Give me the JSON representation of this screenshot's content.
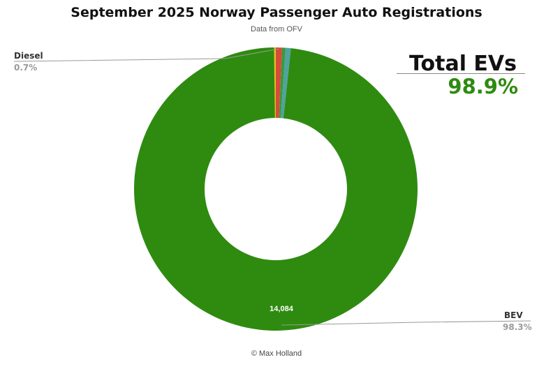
{
  "header": {
    "title": "September 2025 Norway Passenger Auto Registrations",
    "subtitle": "Data from OFV"
  },
  "callouts": {
    "diesel": {
      "name": "Diesel",
      "pct": "0.7%"
    },
    "bev": {
      "name": "BEV",
      "pct": "98.3%"
    }
  },
  "total_evs": {
    "label": "Total EVs",
    "value": "98.9%"
  },
  "credit": "© Max Holland",
  "chart_data": {
    "type": "pie",
    "title": "September 2025 Norway Passenger Auto Registrations",
    "subtitle": "Data from OFV",
    "donut": true,
    "slices": [
      {
        "label": "BEV",
        "percent": 98.3,
        "value": 14084,
        "value_label": "14,084",
        "color": "#2e8b10"
      },
      {
        "label": "",
        "percent": 0.6,
        "color": "#4fa3a0"
      },
      {
        "label": "",
        "percent": 0.4,
        "color": "#3a9a3a"
      },
      {
        "label": "Diesel",
        "percent": 0.7,
        "color": "#d84a3a"
      },
      {
        "label": "",
        "percent": 0.2,
        "color": "#e8c023"
      }
    ]
  }
}
